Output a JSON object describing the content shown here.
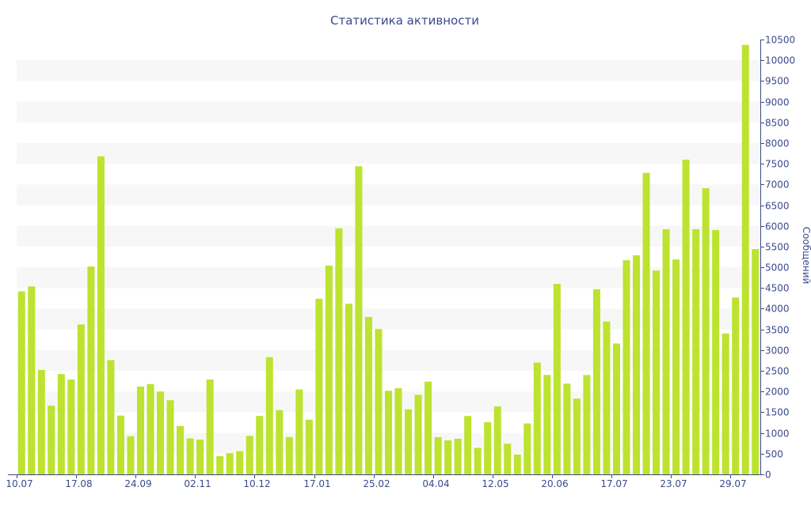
{
  "chart_data": {
    "type": "bar",
    "title": "Статистика активности",
    "ylabel": "Сообщений",
    "xlabel": "",
    "ylim": [
      0,
      10500
    ],
    "y_ticks": [
      0,
      500,
      1000,
      1500,
      2000,
      2500,
      3000,
      3500,
      4000,
      4500,
      5000,
      5500,
      6000,
      6500,
      7000,
      7500,
      8000,
      8500,
      9000,
      9500,
      10000,
      10500
    ],
    "x_tick_labels": [
      {
        "index": 0,
        "label": "10.07"
      },
      {
        "index": 6,
        "label": "17.08"
      },
      {
        "index": 12,
        "label": "24.09"
      },
      {
        "index": 18,
        "label": "02.11"
      },
      {
        "index": 24,
        "label": "10.12"
      },
      {
        "index": 30,
        "label": "17.01"
      },
      {
        "index": 36,
        "label": "25.02"
      },
      {
        "index": 42,
        "label": "04.04"
      },
      {
        "index": 48,
        "label": "12.05"
      },
      {
        "index": 54,
        "label": "20.06"
      },
      {
        "index": 60,
        "label": "17.07"
      },
      {
        "index": 66,
        "label": "23.07"
      },
      {
        "index": 72,
        "label": "29.07"
      }
    ],
    "values": [
      4420,
      4540,
      2520,
      1660,
      2420,
      2290,
      3620,
      5020,
      7680,
      2760,
      1420,
      920,
      2120,
      2180,
      2000,
      1790,
      1170,
      870,
      840,
      2290,
      440,
      510,
      560,
      930,
      1410,
      2830,
      1550,
      900,
      2050,
      1320,
      4240,
      5040,
      5940,
      4120,
      7440,
      3800,
      3510,
      2020,
      2080,
      1570,
      1920,
      2240,
      900,
      820,
      860,
      1410,
      640,
      1260,
      1640,
      740,
      480,
      1230,
      2700,
      2400,
      4600,
      2190,
      1830,
      2400,
      4470,
      3690,
      3160,
      5170,
      5290,
      7280,
      4920,
      5920,
      5190,
      7600,
      5920,
      6910,
      5900,
      3400,
      4270,
      10370,
      5440
    ],
    "grid": "horizontal bands",
    "legend": "none",
    "bar_color": "#bce32f",
    "band_color": "#f7f7f7",
    "text_color": "#3b4a8c",
    "axis_color": "#3b4a8c"
  }
}
